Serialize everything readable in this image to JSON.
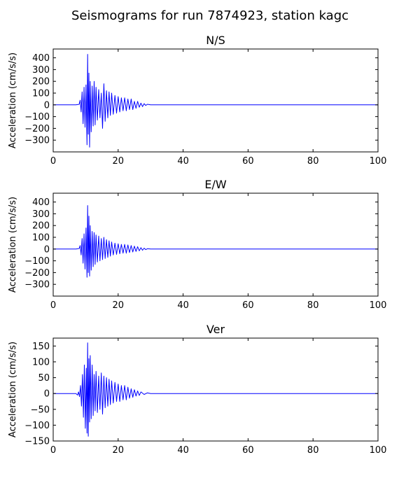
{
  "figure_title": "Seismograms for run 7874923, station kagc",
  "colors": {
    "trace": "#0000ff",
    "axes": "#000000",
    "background": "#ffffff"
  },
  "chart_data": [
    {
      "type": "line",
      "title": "N/S",
      "xlabel": "",
      "ylabel": "Acceleration (cm/s/s)",
      "xlim": [
        0,
        100
      ],
      "ylim": [
        -400,
        475
      ],
      "xticks": [
        0,
        20,
        40,
        60,
        80,
        100
      ],
      "yticks": [
        -300,
        -200,
        -100,
        0,
        100,
        200,
        300,
        400
      ],
      "grid": false,
      "series": [
        {
          "color": "#0000ff",
          "x": [
            0,
            7,
            8,
            8.3,
            8.6,
            8.9,
            9.2,
            9.5,
            9.8,
            10.1,
            10.4,
            10.6,
            10.8,
            11.0,
            11.2,
            11.4,
            11.7,
            12.0,
            12.3,
            12.6,
            12.9,
            13.2,
            13.6,
            14.0,
            14.4,
            14.8,
            15.2,
            15.6,
            16.0,
            16.4,
            16.8,
            17.2,
            17.6,
            18.0,
            18.5,
            19.0,
            19.5,
            20.0,
            20.5,
            21.0,
            21.5,
            22.0,
            22.5,
            23.0,
            23.5,
            24.0,
            24.5,
            25.0,
            25.5,
            26.0,
            26.5,
            27.0,
            27.5,
            28.0,
            28.5,
            29.0,
            30,
            100
          ],
          "y": [
            0,
            0,
            5,
            40,
            -60,
            110,
            -160,
            150,
            -190,
            170,
            -340,
            430,
            -250,
            270,
            -360,
            200,
            -230,
            160,
            -180,
            200,
            -170,
            150,
            -130,
            130,
            -110,
            100,
            -200,
            180,
            -140,
            120,
            -110,
            110,
            -90,
            100,
            -80,
            80,
            -70,
            70,
            -60,
            60,
            -50,
            60,
            -50,
            50,
            -40,
            50,
            -40,
            30,
            -30,
            30,
            -20,
            15,
            -15,
            10,
            -5,
            5,
            0,
            0
          ]
        }
      ]
    },
    {
      "type": "line",
      "title": "E/W",
      "xlabel": "",
      "ylabel": "Acceleration (cm/s/s)",
      "xlim": [
        0,
        100
      ],
      "ylim": [
        -400,
        475
      ],
      "xticks": [
        0,
        20,
        40,
        60,
        80,
        100
      ],
      "yticks": [
        -300,
        -200,
        -100,
        0,
        100,
        200,
        300,
        400
      ],
      "grid": false,
      "series": [
        {
          "color": "#0000ff",
          "x": [
            0,
            7,
            8,
            8.3,
            8.6,
            8.9,
            9.2,
            9.5,
            9.8,
            10.1,
            10.4,
            10.6,
            10.8,
            11.0,
            11.2,
            11.4,
            11.7,
            12.0,
            12.3,
            12.6,
            12.9,
            13.2,
            13.6,
            14.0,
            14.4,
            14.8,
            15.2,
            15.6,
            16.0,
            16.4,
            16.8,
            17.2,
            17.6,
            18.0,
            18.5,
            19.0,
            19.5,
            20.0,
            20.5,
            21.0,
            21.5,
            22.0,
            22.5,
            23.0,
            23.5,
            24.0,
            24.5,
            25.0,
            25.5,
            26.0,
            26.5,
            27.0,
            27.5,
            28.0,
            28.5,
            29.0,
            30,
            100
          ],
          "y": [
            0,
            0,
            5,
            30,
            -50,
            90,
            -120,
            130,
            -170,
            180,
            -240,
            370,
            -200,
            280,
            -230,
            200,
            -180,
            150,
            -150,
            140,
            -130,
            120,
            -110,
            110,
            -100,
            90,
            -90,
            100,
            -80,
            80,
            -70,
            70,
            -60,
            60,
            -50,
            50,
            -45,
            45,
            -40,
            40,
            -35,
            40,
            -35,
            35,
            -30,
            30,
            -25,
            25,
            -20,
            20,
            -15,
            12,
            -10,
            8,
            -5,
            3,
            0,
            0
          ]
        }
      ]
    },
    {
      "type": "line",
      "title": "Ver",
      "xlabel": "",
      "ylabel": "Acceleration (cm/s/s)",
      "xlim": [
        0,
        100
      ],
      "ylim": [
        -150,
        175
      ],
      "xticks": [
        0,
        20,
        40,
        60,
        80,
        100
      ],
      "yticks": [
        -150,
        -100,
        -50,
        0,
        50,
        100,
        150
      ],
      "grid": false,
      "series": [
        {
          "color": "#0000ff",
          "x": [
            0,
            7,
            7.5,
            7.8,
            8.1,
            8.4,
            8.7,
            9.0,
            9.3,
            9.6,
            9.9,
            10.2,
            10.4,
            10.6,
            10.8,
            11.0,
            11.2,
            11.4,
            11.7,
            12.0,
            12.3,
            12.6,
            12.9,
            13.2,
            13.6,
            14.0,
            14.4,
            14.8,
            15.2,
            15.6,
            16.0,
            16.4,
            16.8,
            17.2,
            17.6,
            18.0,
            18.5,
            19.0,
            19.5,
            20.0,
            20.5,
            21.0,
            21.5,
            22.0,
            22.5,
            23.0,
            23.5,
            24.0,
            24.5,
            25.0,
            25.5,
            26.0,
            26.5,
            27.0,
            28.0,
            29.0,
            30,
            100
          ],
          "y": [
            0,
            0,
            -5,
            5,
            -10,
            25,
            -40,
            60,
            -75,
            90,
            -110,
            80,
            -125,
            160,
            -135,
            110,
            -90,
            120,
            -80,
            90,
            -70,
            60,
            -55,
            70,
            -60,
            55,
            -50,
            65,
            -65,
            55,
            -45,
            50,
            -40,
            45,
            -35,
            40,
            -30,
            35,
            -25,
            30,
            -25,
            25,
            -20,
            25,
            -20,
            20,
            -15,
            15,
            -12,
            12,
            -8,
            8,
            -6,
            5,
            -3,
            2,
            0,
            0
          ]
        }
      ]
    }
  ]
}
